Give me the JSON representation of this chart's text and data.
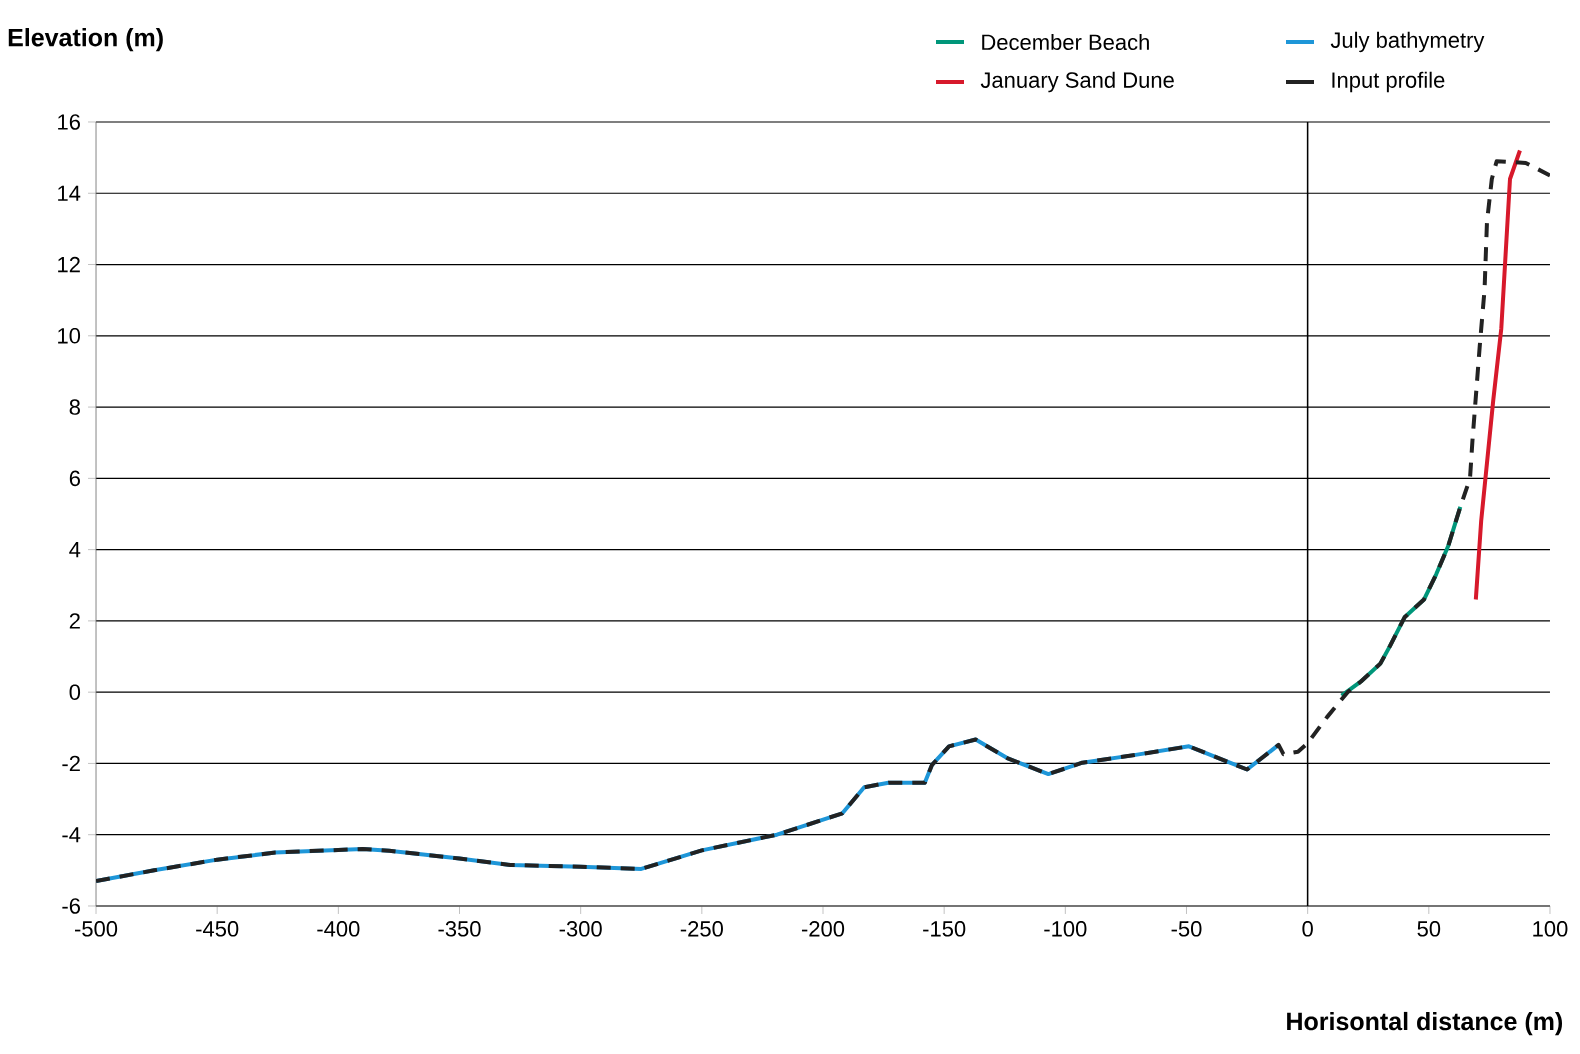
{
  "chart_data": {
    "type": "line",
    "xlabel": "Horisontal distance (m)",
    "ylabel": "Elevation (m)",
    "xlim": [
      -500,
      100
    ],
    "xticks": [
      -500,
      -450,
      -400,
      -350,
      -300,
      -250,
      -200,
      -150,
      -100,
      -50,
      0,
      50,
      100
    ],
    "ylim": [
      -6,
      16
    ],
    "yticks": [
      -6,
      -4,
      -2,
      0,
      2,
      4,
      6,
      8,
      10,
      12,
      14,
      16
    ],
    "grid": "y",
    "legend": "top right",
    "marker": "none",
    "ref_lines": [
      {
        "axis": "x",
        "value": 0,
        "color": "#000000"
      }
    ],
    "series": [
      {
        "name": "December Beach",
        "color": "#00967a",
        "line_style": "solid",
        "x": [
          14,
          22,
          30,
          34,
          40,
          48,
          53,
          58,
          63
        ],
        "values": [
          -0.1,
          0.3,
          0.8,
          1.3,
          2.1,
          2.6,
          3.3,
          4.1,
          5.2
        ]
      },
      {
        "name": "January Sand Dune",
        "color": "#d7192b",
        "line_style": "solid",
        "x": [
          69.4,
          71.6,
          76.6,
          79.9,
          83.5,
          87.6
        ],
        "values": [
          2.6,
          4.8,
          8.2,
          10.2,
          14.4,
          15.2
        ]
      },
      {
        "name": "July bathymetry",
        "color": "#1e96d8",
        "line_style": "solid",
        "x": [
          -500,
          -476,
          -450,
          -426,
          -390,
          -379,
          -350,
          -329,
          -300,
          -275,
          -250,
          -219,
          -192,
          -183,
          -173,
          -158,
          -155,
          -148,
          -137,
          -124,
          -107,
          -93,
          -71,
          -49,
          -25,
          -12
        ],
        "values": [
          -5.3,
          -5.0,
          -4.7,
          -4.5,
          -4.4,
          -4.45,
          -4.67,
          -4.85,
          -4.9,
          -4.96,
          -4.44,
          -4.0,
          -3.4,
          -2.67,
          -2.54,
          -2.54,
          -2.04,
          -1.52,
          -1.33,
          -1.85,
          -2.3,
          -1.98,
          -1.76,
          -1.52,
          -2.17,
          -1.48
        ]
      },
      {
        "name": "Input profile",
        "color": "#222222",
        "line_style": "dashed",
        "x": [
          -500,
          -476,
          -450,
          -426,
          -390,
          -379,
          -350,
          -329,
          -300,
          -275,
          -250,
          -219,
          -192,
          -183,
          -173,
          -158,
          -155,
          -148,
          -137,
          -124,
          -107,
          -93,
          -71,
          -49,
          -25,
          -12,
          -10,
          -4,
          0,
          8,
          16.5,
          22,
          30,
          34,
          40,
          48,
          53,
          58,
          63,
          67,
          68,
          71,
          73,
          74,
          76,
          78,
          90,
          100
        ],
        "values": [
          -5.3,
          -5.0,
          -4.7,
          -4.5,
          -4.4,
          -4.45,
          -4.67,
          -4.85,
          -4.9,
          -4.96,
          -4.44,
          -4.0,
          -3.4,
          -2.67,
          -2.54,
          -2.54,
          -2.04,
          -1.52,
          -1.33,
          -1.85,
          -2.3,
          -1.98,
          -1.76,
          -1.52,
          -2.17,
          -1.48,
          -1.74,
          -1.67,
          -1.43,
          -0.7,
          0,
          0.3,
          0.8,
          1.3,
          2.1,
          2.6,
          3.3,
          4.1,
          5.2,
          6.0,
          7.05,
          9.7,
          11.3,
          13.2,
          14.4,
          14.9,
          14.85,
          14.5
        ]
      }
    ]
  }
}
